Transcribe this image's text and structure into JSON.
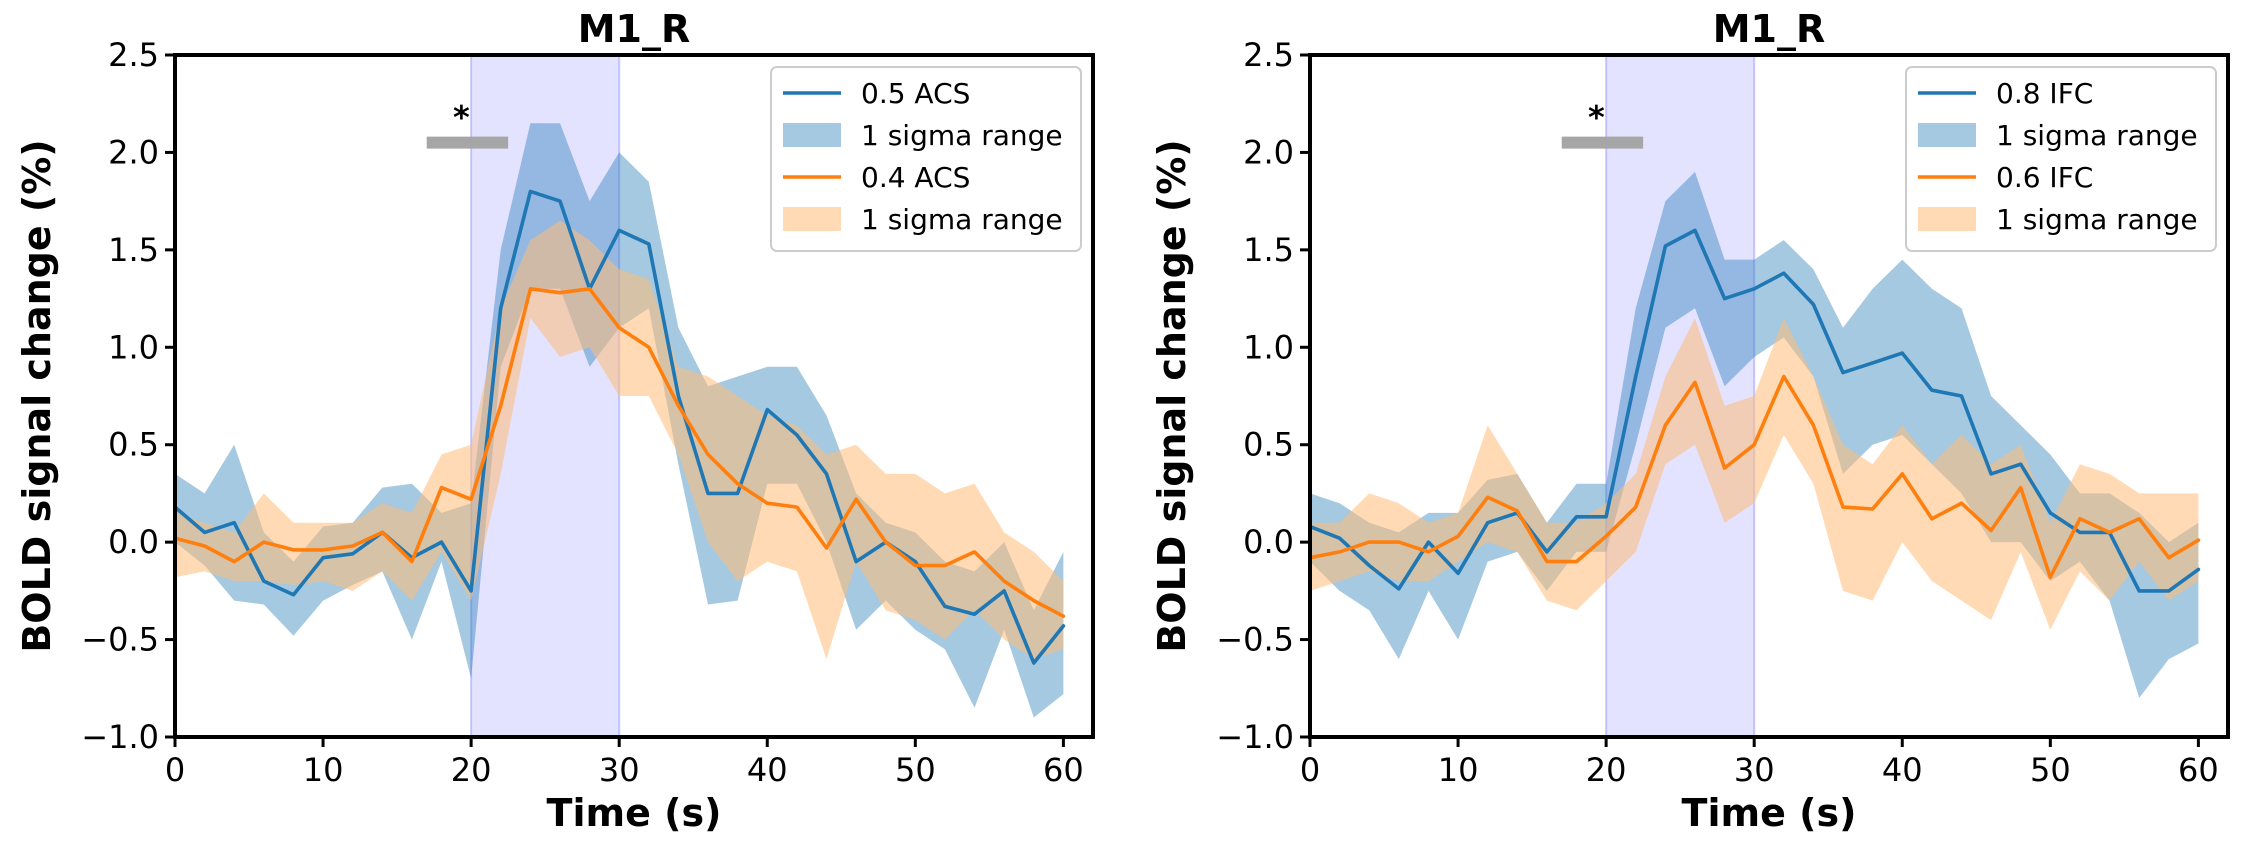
{
  "chart_data": [
    {
      "type": "line",
      "title": "M1_R",
      "xlabel": "Time (s)",
      "ylabel": "BOLD signal change (%)",
      "xlim": [
        0,
        62
      ],
      "ylim": [
        -1.0,
        2.5
      ],
      "xticks": [
        0,
        10,
        20,
        30,
        40,
        50,
        60
      ],
      "xtick_labels": [
        "0",
        "10",
        "20",
        "30",
        "40",
        "50",
        "60"
      ],
      "yticks": [
        -1.0,
        -0.5,
        0.0,
        0.5,
        1.0,
        1.5,
        2.0,
        2.5
      ],
      "ytick_labels": [
        "−1.0",
        "−0.5",
        "0.0",
        "0.5",
        "1.0",
        "1.5",
        "2.0",
        "2.5"
      ],
      "shaded_region": {
        "x0": 20,
        "x1": 30,
        "color": "#ccccff"
      },
      "significance_bar": {
        "x0": 17,
        "x1": 22.5,
        "y": 2.05,
        "label": "*",
        "color": "#a6a6a6"
      },
      "legend_position": "top-right",
      "x": [
        0,
        2,
        4,
        6,
        8,
        10,
        12,
        14,
        16,
        18,
        20,
        22,
        24,
        26,
        28,
        30,
        32,
        34,
        36,
        38,
        40,
        42,
        44,
        46,
        48,
        50,
        52,
        54,
        56,
        58,
        60
      ],
      "series": [
        {
          "name": "0.5 ACS",
          "band_name": "1 sigma range",
          "color": "#1f77b4",
          "band_color": "#1f77b4",
          "values": [
            0.18,
            0.05,
            0.1,
            -0.2,
            -0.27,
            -0.08,
            -0.06,
            0.05,
            -0.08,
            0.0,
            -0.25,
            1.2,
            1.8,
            1.75,
            1.3,
            1.6,
            1.53,
            0.75,
            0.25,
            0.25,
            0.68,
            0.55,
            0.35,
            -0.1,
            0.0,
            -0.1,
            -0.33,
            -0.37,
            -0.25,
            -0.62,
            -0.43
          ],
          "lower": [
            0.0,
            -0.12,
            -0.3,
            -0.32,
            -0.48,
            -0.3,
            -0.22,
            -0.15,
            -0.5,
            -0.1,
            -0.7,
            0.9,
            1.3,
            1.3,
            0.9,
            1.1,
            1.2,
            0.4,
            -0.32,
            -0.3,
            0.3,
            0.3,
            0.0,
            -0.45,
            -0.3,
            -0.45,
            -0.55,
            -0.85,
            -0.45,
            -0.9,
            -0.78
          ],
          "upper": [
            0.35,
            0.25,
            0.5,
            0.05,
            -0.1,
            0.08,
            0.1,
            0.28,
            0.3,
            0.15,
            0.2,
            1.5,
            2.15,
            2.15,
            1.75,
            2.0,
            1.85,
            1.1,
            0.8,
            0.85,
            0.9,
            0.9,
            0.65,
            0.25,
            0.1,
            0.05,
            -0.1,
            -0.15,
            0.0,
            -0.35,
            -0.05
          ]
        },
        {
          "name": "0.4 ACS",
          "band_name": "1 sigma range",
          "color": "#ff7f0e",
          "band_color": "#ffbb78",
          "values": [
            0.02,
            -0.02,
            -0.1,
            0.0,
            -0.04,
            -0.04,
            -0.02,
            0.05,
            -0.1,
            0.28,
            0.22,
            0.7,
            1.3,
            1.28,
            1.3,
            1.1,
            1.0,
            0.7,
            0.45,
            0.3,
            0.2,
            0.18,
            -0.03,
            0.22,
            0.0,
            -0.12,
            -0.12,
            -0.05,
            -0.2,
            -0.3,
            -0.38
          ],
          "lower": [
            -0.18,
            -0.15,
            -0.2,
            -0.2,
            -0.22,
            -0.2,
            -0.25,
            -0.15,
            -0.3,
            -0.05,
            -0.3,
            0.35,
            1.15,
            0.95,
            1.0,
            0.75,
            0.75,
            0.45,
            0.0,
            -0.2,
            -0.1,
            -0.15,
            -0.6,
            -0.1,
            -0.35,
            -0.4,
            -0.5,
            -0.35,
            -0.5,
            -0.6,
            -0.55
          ],
          "upper": [
            0.15,
            0.1,
            0.05,
            0.25,
            0.1,
            0.1,
            0.1,
            0.2,
            0.15,
            0.45,
            0.5,
            1.2,
            1.55,
            1.65,
            1.55,
            1.4,
            1.35,
            0.9,
            0.85,
            0.75,
            0.65,
            0.6,
            0.45,
            0.5,
            0.35,
            0.35,
            0.25,
            0.3,
            0.05,
            -0.05,
            -0.2
          ]
        }
      ]
    },
    {
      "type": "line",
      "title": "M1_R",
      "xlabel": "Time (s)",
      "ylabel": "BOLD signal change (%)",
      "xlim": [
        0,
        62
      ],
      "ylim": [
        -1.0,
        2.5
      ],
      "xticks": [
        0,
        10,
        20,
        30,
        40,
        50,
        60
      ],
      "xtick_labels": [
        "0",
        "10",
        "20",
        "30",
        "40",
        "50",
        "60"
      ],
      "yticks": [
        -1.0,
        -0.5,
        0.0,
        0.5,
        1.0,
        1.5,
        2.0,
        2.5
      ],
      "ytick_labels": [
        "−1.0",
        "−0.5",
        "0.0",
        "0.5",
        "1.0",
        "1.5",
        "2.0",
        "2.5"
      ],
      "shaded_region": {
        "x0": 20,
        "x1": 30,
        "color": "#ccccff"
      },
      "significance_bar": {
        "x0": 17,
        "x1": 22.5,
        "y": 2.05,
        "label": "*",
        "color": "#a6a6a6"
      },
      "legend_position": "top-right",
      "x": [
        0,
        2,
        4,
        6,
        8,
        10,
        12,
        14,
        16,
        18,
        20,
        22,
        24,
        26,
        28,
        30,
        32,
        34,
        36,
        38,
        40,
        42,
        44,
        46,
        48,
        50,
        52,
        54,
        56,
        58,
        60
      ],
      "series": [
        {
          "name": "0.8 IFC",
          "band_name": "1 sigma range",
          "color": "#1f77b4",
          "band_color": "#1f77b4",
          "values": [
            0.08,
            0.02,
            -0.12,
            -0.24,
            0.0,
            -0.16,
            0.1,
            0.15,
            -0.05,
            0.13,
            0.13,
            0.85,
            1.52,
            1.6,
            1.25,
            1.3,
            1.38,
            1.22,
            0.87,
            0.92,
            0.97,
            0.78,
            0.75,
            0.35,
            0.4,
            0.15,
            0.05,
            0.05,
            -0.25,
            -0.25,
            -0.14
          ],
          "lower": [
            -0.1,
            -0.25,
            -0.35,
            -0.6,
            -0.25,
            -0.5,
            -0.1,
            -0.05,
            -0.25,
            -0.05,
            -0.05,
            0.5,
            1.1,
            1.2,
            0.8,
            0.95,
            1.05,
            0.85,
            0.35,
            0.5,
            0.55,
            0.4,
            0.25,
            0.0,
            0.0,
            -0.2,
            -0.1,
            -0.3,
            -0.8,
            -0.6,
            -0.52
          ],
          "upper": [
            0.25,
            0.2,
            0.1,
            0.05,
            0.15,
            0.15,
            0.32,
            0.35,
            0.1,
            0.3,
            0.3,
            1.2,
            1.75,
            1.9,
            1.45,
            1.45,
            1.55,
            1.4,
            1.1,
            1.3,
            1.45,
            1.3,
            1.2,
            0.75,
            0.6,
            0.45,
            0.25,
            0.25,
            0.15,
            0.0,
            0.1
          ]
        },
        {
          "name": "0.6 IFC",
          "band_name": "1 sigma range",
          "color": "#ff7f0e",
          "band_color": "#ffbb78",
          "values": [
            -0.08,
            -0.05,
            0.0,
            0.0,
            -0.05,
            0.03,
            0.23,
            0.16,
            -0.1,
            -0.1,
            0.03,
            0.18,
            0.6,
            0.82,
            0.38,
            0.5,
            0.85,
            0.6,
            0.18,
            0.17,
            0.35,
            0.12,
            0.2,
            0.06,
            0.28,
            -0.18,
            0.12,
            0.05,
            0.12,
            -0.08,
            0.01
          ],
          "lower": [
            -0.25,
            -0.2,
            -0.15,
            -0.2,
            -0.2,
            -0.1,
            0.0,
            -0.05,
            -0.3,
            -0.35,
            -0.2,
            -0.05,
            0.4,
            0.5,
            0.1,
            0.2,
            0.55,
            0.3,
            -0.25,
            -0.3,
            0.0,
            -0.2,
            -0.3,
            -0.4,
            -0.05,
            -0.45,
            -0.15,
            -0.3,
            -0.1,
            -0.3,
            -0.2
          ],
          "upper": [
            0.1,
            0.1,
            0.25,
            0.2,
            0.1,
            0.15,
            0.6,
            0.35,
            0.1,
            0.1,
            0.2,
            0.35,
            0.85,
            1.15,
            0.7,
            0.75,
            1.15,
            0.85,
            0.5,
            0.4,
            0.6,
            0.4,
            0.55,
            0.4,
            0.5,
            0.1,
            0.4,
            0.35,
            0.25,
            0.25,
            0.25
          ]
        }
      ]
    }
  ]
}
